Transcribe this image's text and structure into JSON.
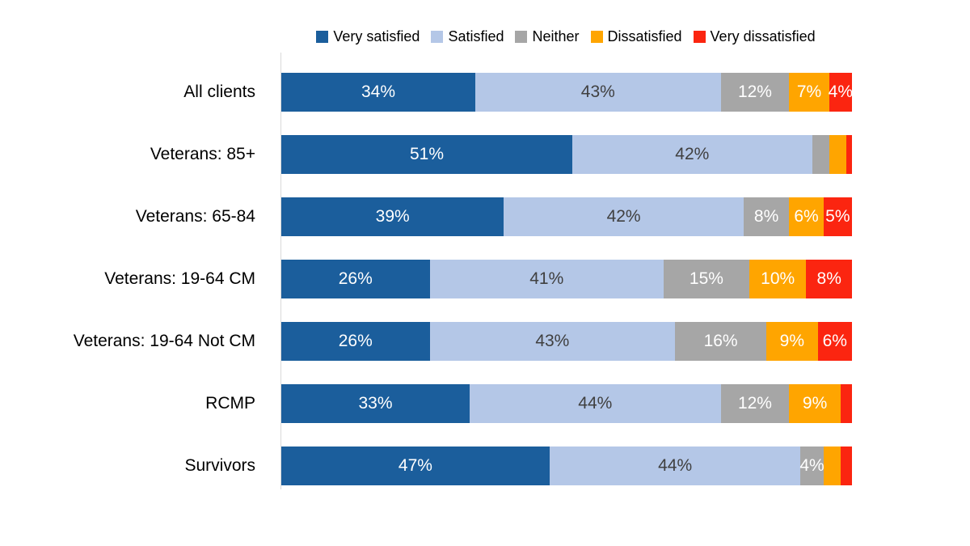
{
  "chart_data": {
    "type": "bar",
    "variant": "horizontal-stacked",
    "title": "",
    "xlabel": "",
    "ylabel": "",
    "xlim": [
      0,
      100
    ],
    "grid": false,
    "legend_position": "top",
    "value_suffix": "%",
    "min_value_for_label": 4,
    "categories": [
      "All clients",
      "Veterans: 85+",
      "Veterans: 65-84",
      "Veterans: 19-64 CM",
      "Veterans: 19-64 Not CM",
      "RCMP",
      "Survivors"
    ],
    "series": [
      {
        "name": "Very satisfied",
        "color": "#1B5E9C",
        "label_color": "#ffffff",
        "values": [
          34,
          51,
          39,
          26,
          26,
          33,
          47
        ]
      },
      {
        "name": "Satisfied",
        "color": "#B4C7E7",
        "label_color": "#404040",
        "values": [
          43,
          42,
          42,
          41,
          43,
          44,
          44
        ]
      },
      {
        "name": "Neither",
        "color": "#A6A6A6",
        "label_color": "#ffffff",
        "values": [
          12,
          3,
          8,
          15,
          16,
          12,
          4
        ]
      },
      {
        "name": "Dissatisfied",
        "color": "#FFA500",
        "label_color": "#ffffff",
        "values": [
          7,
          3,
          6,
          10,
          9,
          9,
          3
        ]
      },
      {
        "name": "Very dissatisfied",
        "color": "#FB2510",
        "label_color": "#ffffff",
        "values": [
          4,
          1,
          5,
          8,
          6,
          2,
          2
        ]
      }
    ]
  }
}
